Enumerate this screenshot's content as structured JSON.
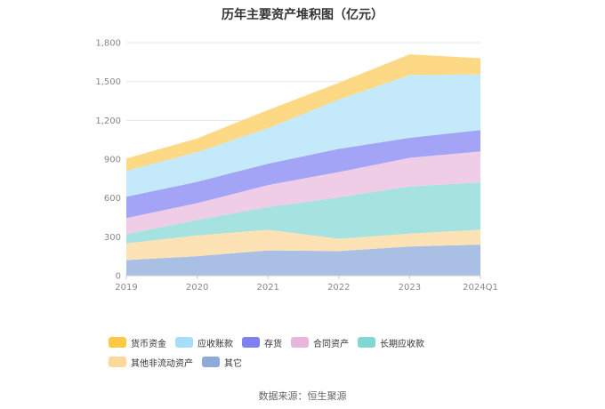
{
  "chart_data": {
    "type": "area",
    "stacked": true,
    "title": "历年主要资产堆积图（亿元）",
    "categories": [
      "2019",
      "2020",
      "2021",
      "2022",
      "2023",
      "2024Q1"
    ],
    "ylim": [
      0,
      1800
    ],
    "yticks": [
      0,
      300,
      600,
      900,
      1200,
      1500,
      1800
    ],
    "ytick_labels": [
      "0",
      "300",
      "600",
      "900",
      "1,200",
      "1,500",
      "1,800"
    ],
    "grid": true,
    "legend_position": "bottom",
    "series": [
      {
        "name": "其它",
        "color": "#a9bfe3",
        "legend_color": "#8eaad8",
        "values": [
          120,
          150,
          195,
          190,
          225,
          240
        ]
      },
      {
        "name": "其他非流动资产",
        "color": "#fde2b5",
        "legend_color": "#fcd89a",
        "values": [
          130,
          160,
          160,
          95,
          100,
          115
        ]
      },
      {
        "name": "长期应收款",
        "color": "#a5e2e0",
        "legend_color": "#82d6d4",
        "values": [
          70,
          120,
          175,
          320,
          365,
          365
        ]
      },
      {
        "name": "合同资产",
        "color": "#f0cde6",
        "legend_color": "#e8b6da",
        "values": [
          125,
          130,
          170,
          195,
          220,
          240
        ]
      },
      {
        "name": "存货",
        "color": "#a3a4f5",
        "legend_color": "#8081f0",
        "values": [
          165,
          165,
          165,
          180,
          155,
          165
        ]
      },
      {
        "name": "应收账款",
        "color": "#c4e9fb",
        "legend_color": "#a6defa",
        "values": [
          200,
          230,
          275,
          380,
          485,
          430
        ]
      },
      {
        "name": "货币资金",
        "color": "#fdd885",
        "legend_color": "#fcc845",
        "values": [
          95,
          105,
          140,
          130,
          160,
          125
        ]
      }
    ],
    "legend_order": [
      "货币资金",
      "应收账款",
      "存货",
      "合同资产",
      "长期应收款",
      "其他非流动资产",
      "其它"
    ]
  },
  "source_text": "数据来源：恒生聚源"
}
